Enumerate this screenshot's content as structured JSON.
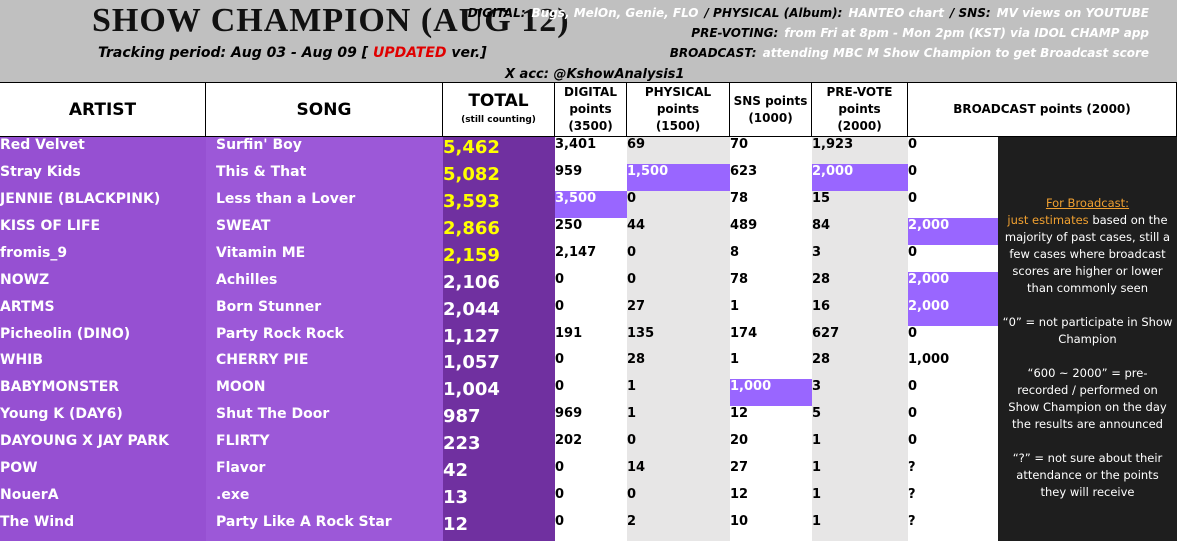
{
  "header": {
    "title": "SHOW CHAMPION (AUG 12)",
    "tracking": [
      "Tracking period: Aug 03 - Aug 09 [ ",
      "UPDATED",
      " ver.]"
    ],
    "info": [
      [
        {
          "text": "DIGITAL:",
          "style": "label"
        },
        {
          "text": "Bugs, MelOn, Genie, FLO",
          "style": "value"
        },
        {
          "text": "/ PHYSICAL (Album):",
          "style": "label"
        },
        {
          "text": "HANTEO chart",
          "style": "value"
        },
        {
          "text": "/ SNS:",
          "style": "label"
        },
        {
          "text": "MV views on YOUTUBE",
          "style": "value"
        }
      ],
      [
        {
          "text": "PRE-VOTING:",
          "style": "label"
        },
        {
          "text": "from Fri at 8pm - Mon 2pm (KST) via IDOL CHAMP app",
          "style": "value"
        }
      ],
      [
        {
          "text": "BROADCAST:",
          "style": "label"
        },
        {
          "text": "attending MBC M Show Champion to get Broadcast score",
          "style": "value"
        }
      ]
    ],
    "x_acc": "X acc: @KshowAnalysis1"
  },
  "table": {
    "columns": [
      [
        "ARTIST"
      ],
      [
        "SONG"
      ],
      [
        "TOTAL",
        "(still counting)"
      ],
      [
        "DIGITAL",
        "points",
        "(3500)"
      ],
      [
        "PHYSICAL",
        "points",
        "(1500)"
      ],
      [
        "SNS points",
        "(1000)"
      ],
      [
        "PRE-VOTE",
        "points",
        "(2000)"
      ],
      [
        "BROADCAST points (2000)"
      ]
    ],
    "yellow_total_rows": [
      0,
      1,
      2,
      3,
      4
    ],
    "rows": [
      {
        "artist": "Red Velvet",
        "song": "Surfin' Boy",
        "total": "5,462",
        "points": [
          "3,401",
          "69",
          "70",
          "1,923",
          "0"
        ],
        "highlight": []
      },
      {
        "artist": "Stray Kids",
        "song": "This & That",
        "total": "5,082",
        "points": [
          "959",
          "1,500",
          "623",
          "2,000",
          "0"
        ],
        "highlight": [
          1,
          3
        ]
      },
      {
        "artist": "JENNIE (BLACKPINK)",
        "song": "Less than a Lover",
        "total": "3,593",
        "points": [
          "3,500",
          "0",
          "78",
          "15",
          "0"
        ],
        "highlight": [
          0
        ]
      },
      {
        "artist": "KISS OF LIFE",
        "song": "SWEAT",
        "total": "2,866",
        "points": [
          "250",
          "44",
          "489",
          "84",
          "2,000"
        ],
        "highlight": [
          4
        ]
      },
      {
        "artist": "fromis_9",
        "song": "Vitamin ME",
        "total": "2,159",
        "points": [
          "2,147",
          "0",
          "8",
          "3",
          "0"
        ],
        "highlight": []
      },
      {
        "artist": "NOWZ",
        "song": "Achilles",
        "total": "2,106",
        "points": [
          "0",
          "0",
          "78",
          "28",
          "2,000"
        ],
        "highlight": [
          4
        ]
      },
      {
        "artist": "ARTMS",
        "song": "Born Stunner",
        "total": "2,044",
        "points": [
          "0",
          "27",
          "1",
          "16",
          "2,000"
        ],
        "highlight": [
          4
        ]
      },
      {
        "artist": "Picheolin (DINO)",
        "song": "Party Rock Rock",
        "total": "1,127",
        "points": [
          "191",
          "135",
          "174",
          "627",
          "0"
        ],
        "highlight": []
      },
      {
        "artist": "WHIB",
        "song": "CHERRY PIE",
        "total": "1,057",
        "points": [
          "0",
          "28",
          "1",
          "28",
          "1,000"
        ],
        "highlight": []
      },
      {
        "artist": "BABYMONSTER",
        "song": "MOON",
        "total": "1,004",
        "points": [
          "0",
          "1",
          "1,000",
          "3",
          "0"
        ],
        "highlight": [
          2
        ]
      },
      {
        "artist": "Young K (DAY6)",
        "song": "Shut The Door",
        "total": "987",
        "points": [
          "969",
          "1",
          "12",
          "5",
          "0"
        ],
        "highlight": []
      },
      {
        "artist": "DAYOUNG X JAY PARK",
        "song": "FLIRTY",
        "total": "223",
        "points": [
          "202",
          "0",
          "20",
          "1",
          "0"
        ],
        "highlight": []
      },
      {
        "artist": "POW",
        "song": "Flavor",
        "total": "42",
        "points": [
          "0",
          "14",
          "27",
          "1",
          "?"
        ],
        "highlight": []
      },
      {
        "artist": "NouerA",
        "song": ".exe",
        "total": "13",
        "points": [
          "0",
          "0",
          "12",
          "1",
          "?"
        ],
        "highlight": []
      },
      {
        "artist": "The Wind",
        "song": "Party Like A Rock Star",
        "total": "12",
        "points": [
          "0",
          "2",
          "10",
          "1",
          "?"
        ],
        "highlight": []
      }
    ]
  },
  "notes": [
    [
      {
        "text": "For Broadcast:",
        "style": "heading"
      }
    ],
    [
      {
        "text": "just estimates",
        "style": "accent"
      },
      {
        "text": " based on the majority of past cases, still a few cases where broadcast scores are higher or lower than commonly seen",
        "style": "plain"
      }
    ],
    [
      {
        "text": "“0” = not participate in Show Champion",
        "style": "plain"
      }
    ],
    [
      {
        "text": "“600 ~ 2000” = pre-recorded / performed on Show Champion on the day the results are announced",
        "style": "plain"
      }
    ],
    [
      {
        "text": "“?” = not sure about their attendance or the points they will receive",
        "style": "plain"
      }
    ]
  ]
}
